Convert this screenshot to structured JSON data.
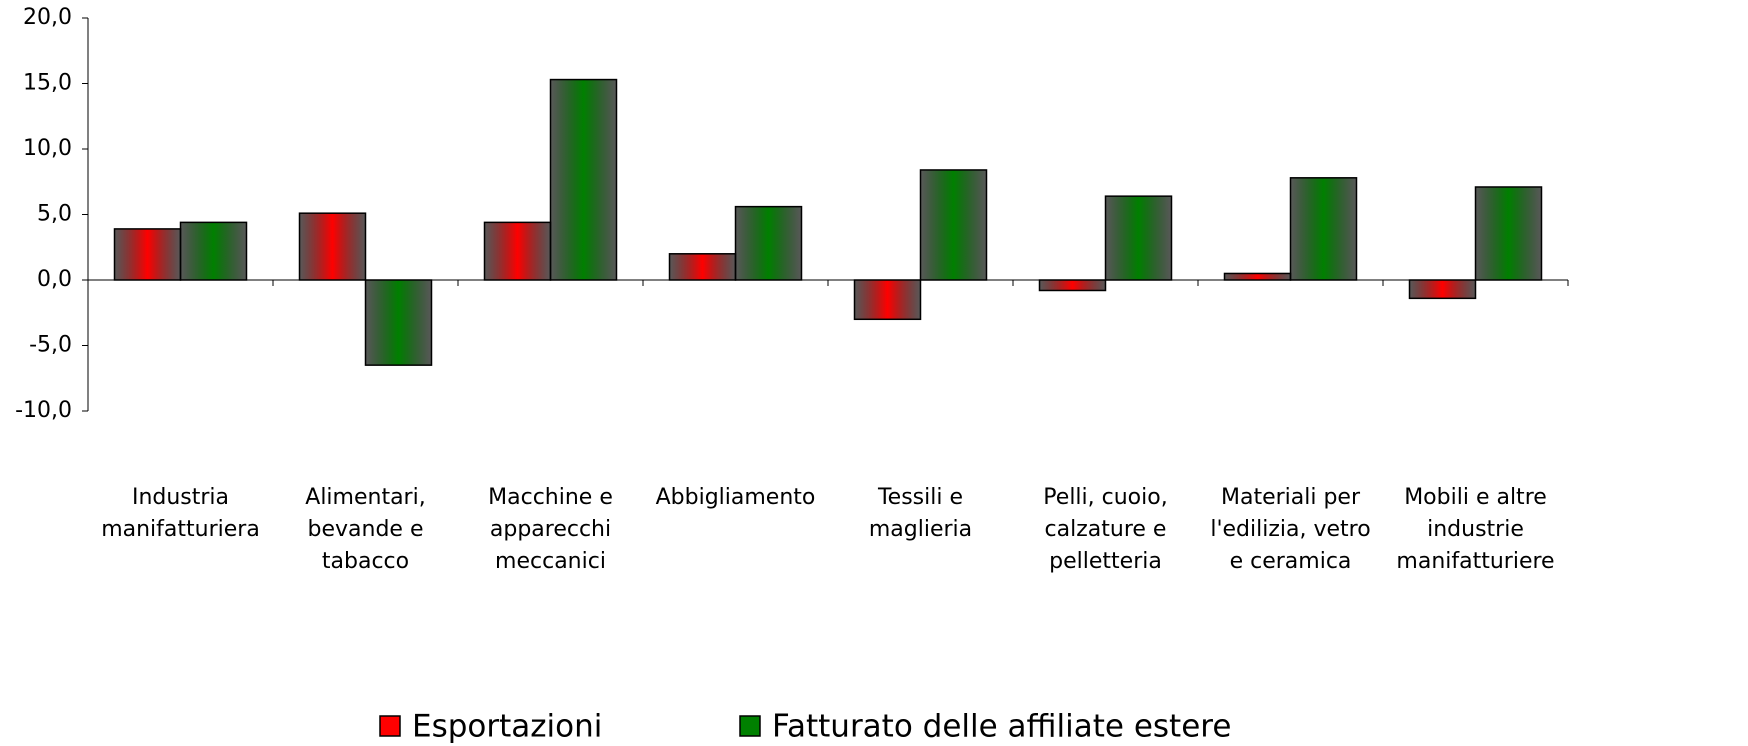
{
  "chart_data": {
    "type": "bar",
    "categories": [
      "Industria manifatturiera",
      "Alimentari, bevande e tabacco",
      "Macchine e apparecchi meccanici",
      "Abbigliamento",
      "Tessili e maglieria",
      "Pelli, cuoio, calzature e pelletteria",
      "Materiali per l'edilizia, vetro e ceramica",
      "Mobili e altre industrie manifatturiere"
    ],
    "series": [
      {
        "name": "Esportazioni",
        "color": "#ff0000",
        "values": [
          3.9,
          5.1,
          4.4,
          2.0,
          -3.0,
          -0.8,
          0.5,
          -1.4
        ]
      },
      {
        "name": "Fatturato delle affiliate estere",
        "color": "#008000",
        "values": [
          4.4,
          -6.5,
          15.3,
          5.6,
          8.4,
          6.4,
          7.8,
          7.1
        ]
      }
    ],
    "ylim": [
      -10,
      20
    ],
    "yticks": [
      {
        "value": -10,
        "label": "-10,0"
      },
      {
        "value": -5,
        "label": "-5,0"
      },
      {
        "value": 0,
        "label": "0,0"
      },
      {
        "value": 5,
        "label": "5,0"
      },
      {
        "value": 10,
        "label": "10,0"
      },
      {
        "value": 15,
        "label": "15,0"
      },
      {
        "value": 20,
        "label": "20,0"
      }
    ],
    "legend": "bottom"
  }
}
